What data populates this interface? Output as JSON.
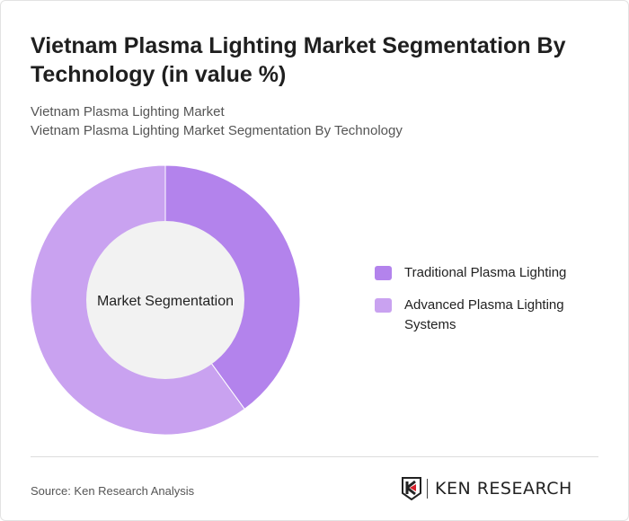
{
  "title": "Vietnam Plasma Lighting Market Segmentation By Technology (in value %)",
  "subtitle1": "Vietnam Plasma Lighting Market",
  "subtitle2": "Vietnam Plasma Lighting Market Segmentation By Technology",
  "source": "Source: Ken Research Analysis",
  "logo_text": "KEN RESEARCH",
  "chart_data": {
    "type": "pie",
    "donut": true,
    "center_label": "Market Segmentation",
    "categories": [
      "Traditional Plasma Lighting",
      "Advanced Plasma Lighting Systems"
    ],
    "values": [
      40,
      60
    ],
    "colors": [
      "#b383ec",
      "#c9a2f0"
    ],
    "legend_position": "right"
  }
}
